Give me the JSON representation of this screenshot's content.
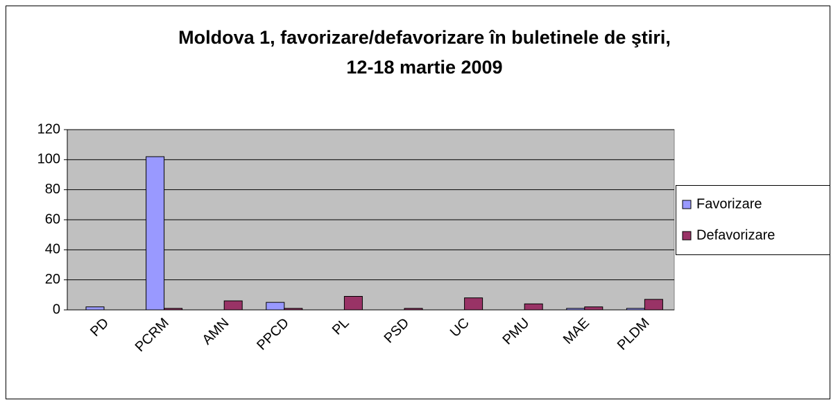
{
  "chart_data": {
    "type": "bar",
    "title": [
      "Moldova 1, favorizare/defavorizare în buletinele de ştiri,",
      "12-18 martie 2009"
    ],
    "categories": [
      "PD",
      "PCRM",
      "AMN",
      "PPCD",
      "PL",
      "PSD",
      "UC",
      "PMU",
      "MAE",
      "PLDM"
    ],
    "series": [
      {
        "name": "Favorizare",
        "color": "#9999ff",
        "values": [
          2,
          102,
          0,
          5,
          0,
          0,
          0,
          0,
          1,
          1
        ]
      },
      {
        "name": "Defavorizare",
        "color": "#993366",
        "values": [
          0,
          1,
          6,
          1,
          9,
          1,
          8,
          4,
          2,
          7
        ]
      }
    ],
    "ylim": [
      0,
      120
    ],
    "yticks": [
      0,
      20,
      40,
      60,
      80,
      100,
      120
    ],
    "grid": true,
    "legend": "right"
  }
}
